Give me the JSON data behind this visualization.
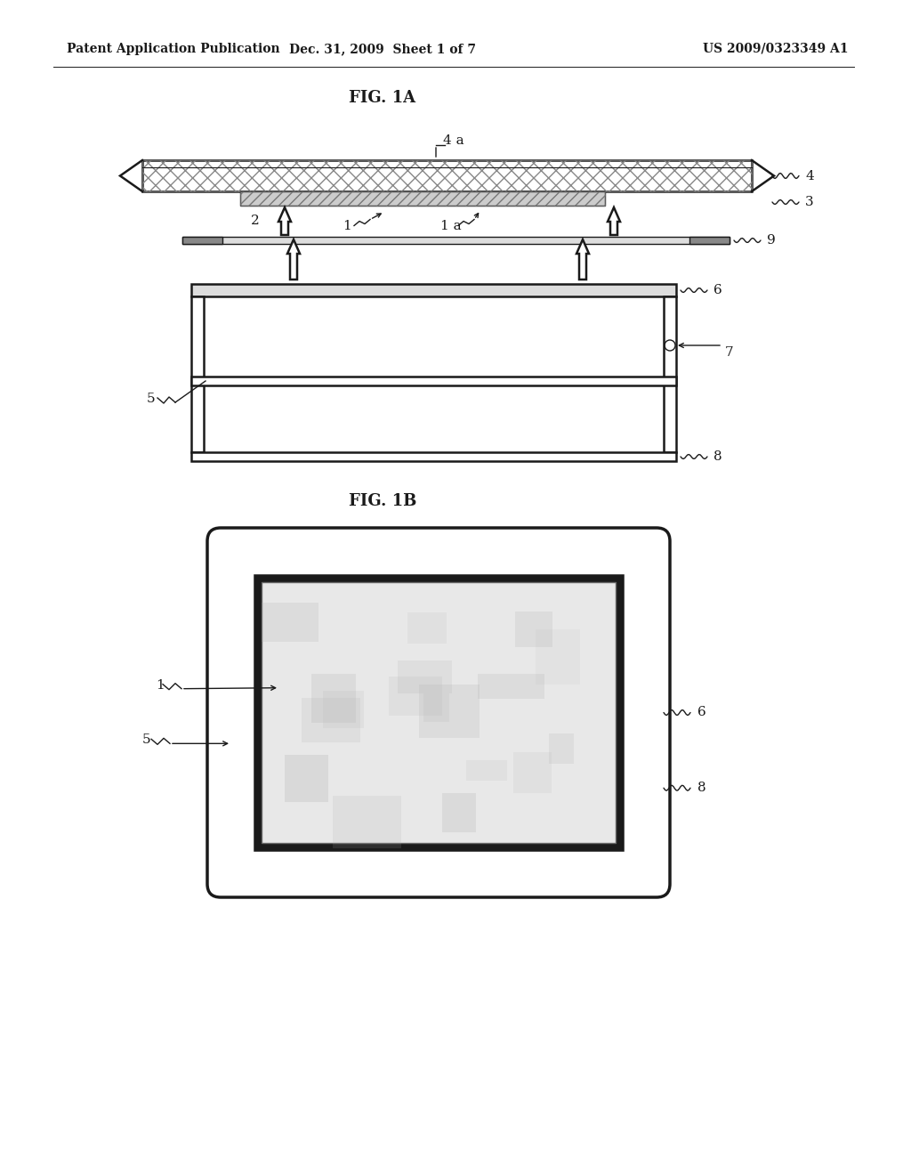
{
  "bg_color": "#ffffff",
  "line_color": "#1a1a1a",
  "header_left": "Patent Application Publication",
  "header_mid": "Dec. 31, 2009  Sheet 1 of 7",
  "header_right": "US 2009/0323349 A1",
  "fig1a_title": "FIG. 1A",
  "fig1b_title": "FIG. 1B",
  "lw_thin": 1.0,
  "lw_med": 1.8,
  "lw_thick": 2.5,
  "fontsize_header": 10,
  "fontsize_label": 11,
  "fontsize_title": 13
}
